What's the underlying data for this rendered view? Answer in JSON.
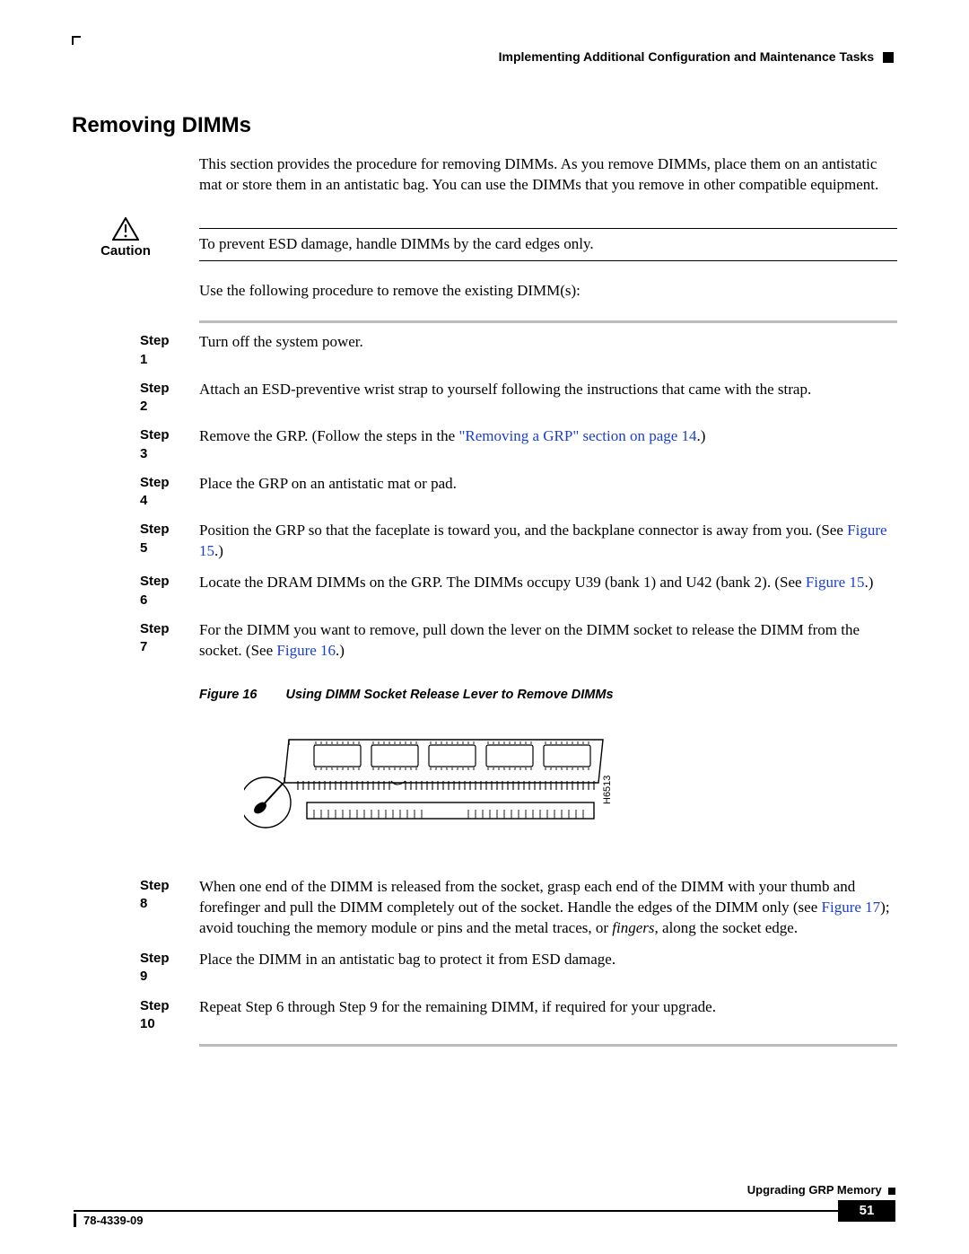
{
  "header": {
    "crumb": "Implementing Additional Configuration and Maintenance Tasks"
  },
  "section_title": "Removing DIMMs",
  "intro": "This section provides the procedure for removing DIMMs. As you remove DIMMs, place them on an antistatic mat or store them in an antistatic bag. You can use the DIMMs that you remove in other compatible equipment.",
  "caution": {
    "label": "Caution",
    "text": "To prevent ESD damage, handle DIMMs by the card edges only."
  },
  "lead": "Use the following procedure to remove the existing DIMM(s):",
  "link_color": "#1a3fcf",
  "steps": [
    {
      "label": "Step 1",
      "body_parts": [
        {
          "t": "Turn off the system power."
        }
      ]
    },
    {
      "label": "Step 2",
      "body_parts": [
        {
          "t": "Attach an ESD-preventive wrist strap to yourself following the instructions that came with the strap."
        }
      ]
    },
    {
      "label": "Step 3",
      "body_parts": [
        {
          "t": "Remove the GRP. (Follow the steps in the "
        },
        {
          "t": "\"Removing a GRP\" section on page 14",
          "link": true
        },
        {
          "t": ".)"
        }
      ]
    },
    {
      "label": "Step 4",
      "body_parts": [
        {
          "t": "Place the GRP on an antistatic mat or pad."
        }
      ]
    },
    {
      "label": "Step 5",
      "body_parts": [
        {
          "t": "Position the GRP so that the faceplate is toward you, and the backplane connector is away from you. (See "
        },
        {
          "t": "Figure 15",
          "link": true
        },
        {
          "t": ".)"
        }
      ]
    },
    {
      "label": "Step 6",
      "body_parts": [
        {
          "t": "Locate the DRAM DIMMs on the GRP. The DIMMs occupy U39 (bank 1) and U42 (bank 2). (See "
        },
        {
          "t": "Figure 15",
          "link": true
        },
        {
          "t": ".)"
        }
      ]
    },
    {
      "label": "Step 7",
      "body_parts": [
        {
          "t": "For the DIMM you want to remove, pull down the lever on the DIMM socket to release the DIMM from the socket. (See "
        },
        {
          "t": "Figure 16",
          "link": true
        },
        {
          "t": ".)"
        }
      ]
    }
  ],
  "figure": {
    "number": "Figure 16",
    "title": "Using DIMM Socket Release Lever to Remove DIMMs",
    "tag": "H6513"
  },
  "steps2": [
    {
      "label": "Step 8",
      "body_parts": [
        {
          "t": "When one end of the DIMM is released from the socket, grasp each end of the DIMM with your thumb and forefinger and pull the DIMM completely out of the socket. Handle the edges of the DIMM only (see "
        },
        {
          "t": "Figure 17",
          "link": true
        },
        {
          "t": "); avoid touching the memory module or pins and the metal traces, or "
        },
        {
          "t": "fingers",
          "italic": true
        },
        {
          "t": ", along the socket edge."
        }
      ]
    },
    {
      "label": "Step 9",
      "body_parts": [
        {
          "t": "Place the DIMM in an antistatic bag to protect it from ESD damage."
        }
      ]
    },
    {
      "label": "Step 10",
      "body_parts": [
        {
          "t": "Repeat Step 6 through Step 9 for the remaining DIMM, if required for your upgrade."
        }
      ]
    }
  ],
  "footer": {
    "doc_title": "Upgrading GRP Memory",
    "doc_number": "78-4339-09",
    "page": "51"
  }
}
